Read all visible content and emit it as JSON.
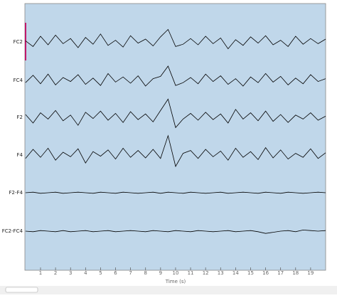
{
  "chart_data": {
    "type": "line",
    "x_label": "Time (s)",
    "xlim": [
      0,
      20
    ],
    "xticks": [
      1,
      2,
      3,
      4,
      5,
      6,
      7,
      8,
      9,
      10,
      11,
      12,
      13,
      14,
      15,
      16,
      17,
      18,
      19
    ],
    "x": [
      0,
      0.5,
      1,
      1.5,
      2,
      2.5,
      3,
      3.5,
      4,
      4.5,
      5,
      5.5,
      6,
      6.5,
      7,
      7.5,
      8,
      8.5,
      9,
      9.5,
      10,
      10.5,
      11,
      11.5,
      12,
      12.5,
      13,
      13.5,
      14,
      14.5,
      15,
      15.5,
      16,
      16.5,
      17,
      17.5,
      18,
      18.5,
      19,
      19.5,
      20
    ],
    "series": [
      {
        "name": "FC2",
        "color": "#000000",
        "values": [
          2,
          -8,
          10,
          -5,
          12,
          -3,
          6,
          -10,
          8,
          -4,
          14,
          -6,
          3,
          -9,
          11,
          -2,
          5,
          -7,
          9,
          22,
          -8,
          -4,
          6,
          -5,
          10,
          -3,
          7,
          -12,
          4,
          -6,
          9,
          -2,
          11,
          -5,
          3,
          -8,
          10,
          -4,
          6,
          -3,
          5
        ]
      },
      {
        "name": "FC4",
        "color": "#000000",
        "values": [
          -4,
          9,
          -6,
          11,
          -8,
          5,
          -2,
          10,
          -7,
          4,
          -9,
          12,
          -3,
          6,
          -5,
          8,
          -10,
          3,
          7,
          25,
          -9,
          -4,
          5,
          -6,
          11,
          -2,
          8,
          -7,
          3,
          -10,
          6,
          -4,
          12,
          -3,
          7,
          -8,
          4,
          -6,
          10,
          -2,
          3
        ]
      },
      {
        "name": "F2",
        "color": "#000000",
        "values": [
          5,
          -10,
          8,
          -3,
          12,
          -6,
          4,
          -14,
          9,
          -2,
          11,
          -5,
          7,
          -9,
          10,
          -4,
          6,
          -8,
          12,
          32,
          -18,
          -3,
          7,
          -5,
          9,
          -4,
          6,
          -10,
          14,
          -3,
          8,
          -6,
          11,
          -7,
          5,
          -9,
          4,
          -3,
          8,
          -5,
          2
        ]
      },
      {
        "name": "F4",
        "color": "#000000",
        "values": [
          -6,
          10,
          -4,
          12,
          -9,
          5,
          -3,
          11,
          -14,
          6,
          -2,
          9,
          -7,
          12,
          -4,
          8,
          -5,
          10,
          -6,
          34,
          -20,
          3,
          8,
          -6,
          10,
          -3,
          7,
          -9,
          12,
          -4,
          6,
          -8,
          13,
          -5,
          9,
          -7,
          3,
          -4,
          11,
          -6,
          4
        ]
      },
      {
        "name": "F2-F4",
        "color": "#000000",
        "values": [
          0,
          1,
          -1,
          0,
          1,
          -1,
          0,
          1,
          0,
          -1,
          1,
          0,
          -1,
          1,
          0,
          -1,
          0,
          1,
          -1,
          1,
          0,
          -1,
          1,
          0,
          -1,
          0,
          1,
          -1,
          0,
          1,
          0,
          -1,
          1,
          0,
          -1,
          1,
          0,
          -1,
          0,
          1,
          0
        ]
      },
      {
        "name": "FC2-FC4",
        "color": "#000000",
        "values": [
          0,
          -1,
          1,
          0,
          -1,
          1,
          -1,
          0,
          1,
          -1,
          0,
          1,
          -1,
          0,
          1,
          0,
          -1,
          1,
          0,
          -1,
          1,
          0,
          -1,
          1,
          0,
          -1,
          0,
          1,
          -1,
          0,
          1,
          -1,
          -4,
          -2,
          0,
          1,
          -1,
          2,
          1,
          0,
          1
        ]
      }
    ]
  }
}
